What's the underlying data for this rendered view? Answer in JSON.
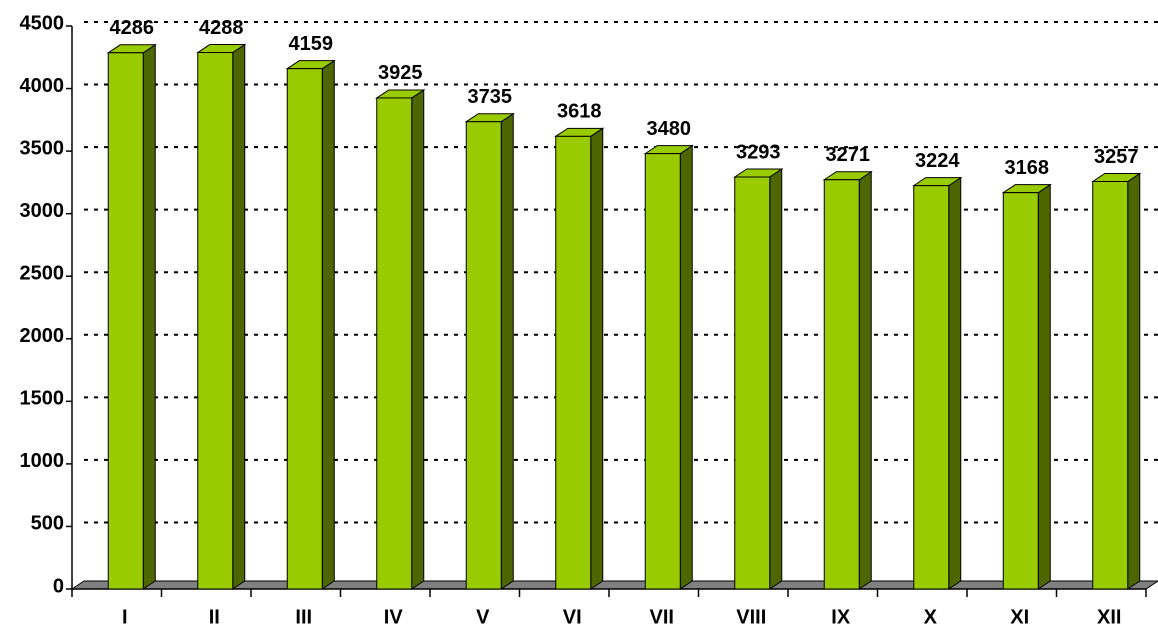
{
  "chart_data": {
    "type": "bar",
    "categories": [
      "I",
      "II",
      "III",
      "IV",
      "V",
      "VI",
      "VII",
      "VIII",
      "IX",
      "X",
      "XI",
      "XII"
    ],
    "values": [
      4286,
      4288,
      4159,
      3925,
      3735,
      3618,
      3480,
      3293,
      3271,
      3224,
      3168,
      3257
    ],
    "color": "#99cc00",
    "ylim": [
      0,
      4500
    ],
    "yticks": [
      0,
      500,
      1000,
      1500,
      2000,
      2500,
      3000,
      3500,
      4000,
      4500
    ],
    "grid": true
  }
}
